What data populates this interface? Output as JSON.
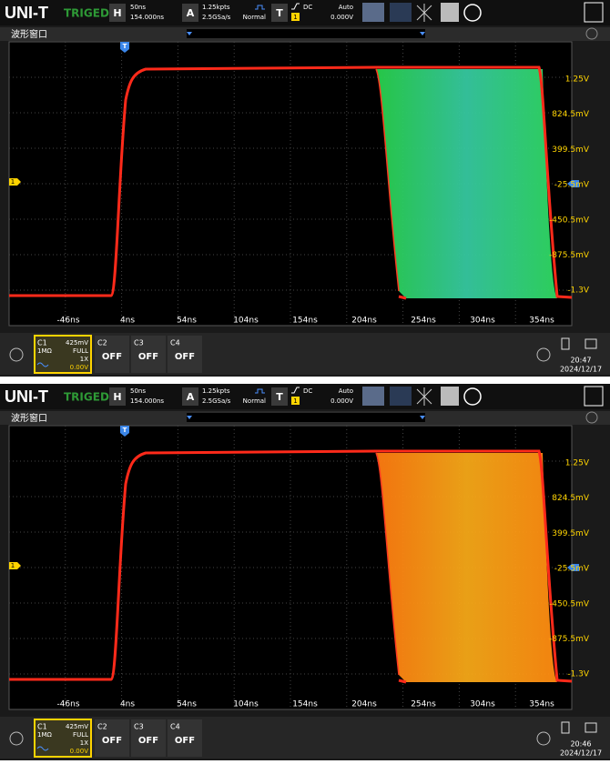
{
  "screens": [
    {
      "toolbar": {
        "logo": "UNI-T",
        "status": "TRIGED",
        "h_label": "H",
        "h_scale": "50ns",
        "h_offset": "154.000ns",
        "a_label": "A",
        "a_points": "1.25kpts",
        "a_rate": "2.5GSa/s",
        "a_mode": "Normal",
        "t_label": "T",
        "t_coupling": "DC",
        "t_source": "1",
        "t_mode": "Auto",
        "t_level": "0.000V"
      },
      "window_title": "波形窗口",
      "trigger_marker": "T",
      "channel_marker": "1",
      "x_labels": [
        "-46ns",
        "4ns",
        "54ns",
        "104ns",
        "154ns",
        "204ns",
        "254ns",
        "304ns",
        "354ns"
      ],
      "y_labels": [
        "1.25V",
        "824.5mV",
        "399.5mV",
        "-25.5mV",
        "-450.5mV",
        "-875.5mV",
        "-1.3V"
      ],
      "channel_1": {
        "name": "C1",
        "scale": "425mV",
        "impedance": "1MΩ",
        "bandwidth": "FULL",
        "probe": "1X",
        "offset": "0.00V"
      },
      "channels_off": [
        {
          "name": "C2",
          "state": "OFF"
        },
        {
          "name": "C3",
          "state": "OFF"
        },
        {
          "name": "C4",
          "state": "OFF"
        }
      ],
      "clock": {
        "time": "20:47",
        "date": "2024/12/17"
      }
    },
    {
      "toolbar": {
        "logo": "UNI-T",
        "status": "TRIGED",
        "h_label": "H",
        "h_scale": "50ns",
        "h_offset": "154.000ns",
        "a_label": "A",
        "a_points": "1.25kpts",
        "a_rate": "2.5GSa/s",
        "a_mode": "Normal",
        "t_label": "T",
        "t_coupling": "DC",
        "t_source": "1",
        "t_mode": "Auto",
        "t_level": "0.000V"
      },
      "window_title": "波形窗口",
      "trigger_marker": "T",
      "channel_marker": "1",
      "x_labels": [
        "-46ns",
        "4ns",
        "54ns",
        "104ns",
        "154ns",
        "204ns",
        "254ns",
        "304ns",
        "354ns"
      ],
      "y_labels": [
        "1.25V",
        "824.5mV",
        "399.5mV",
        "-25.5mV",
        "-450.5mV",
        "-875.5mV",
        "-1.3V"
      ],
      "channel_1": {
        "name": "C1",
        "scale": "425mV",
        "impedance": "1MΩ",
        "bandwidth": "FULL",
        "probe": "1X",
        "offset": "0.00V"
      },
      "channels_off": [
        {
          "name": "C2",
          "state": "OFF"
        },
        {
          "name": "C3",
          "state": "OFF"
        },
        {
          "name": "C4",
          "state": "OFF"
        }
      ],
      "clock": {
        "time": "20:46",
        "date": "2024/12/17"
      }
    }
  ]
}
